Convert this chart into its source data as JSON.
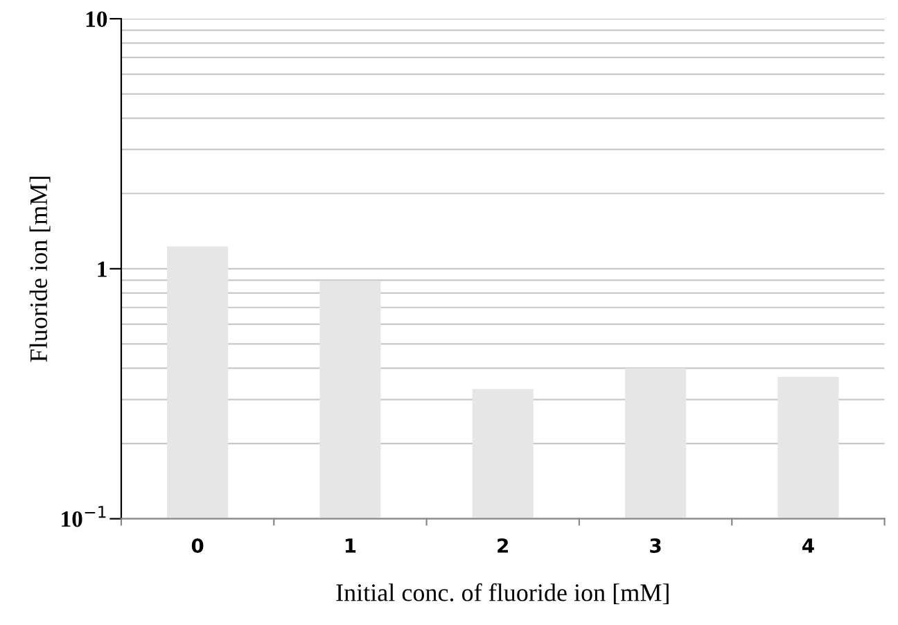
{
  "chart_data": {
    "type": "bar",
    "xlabel": "Initial conc. of fluoride ion [mM]",
    "ylabel": "Fluoride ion [mM]",
    "categories": [
      "0",
      "1",
      "2",
      "3",
      "4"
    ],
    "values": [
      1.23,
      0.89,
      0.33,
      0.4,
      0.37
    ],
    "color": "#e6e6e6",
    "log": "y",
    "ylim": [
      0.1,
      10
    ],
    "yticks": [
      {
        "value": 0.1,
        "label": "10$^{−1}$"
      },
      {
        "value": 0.2,
        "label": null
      },
      {
        "value": 0.3,
        "label": null
      },
      {
        "value": 0.4,
        "label": null
      },
      {
        "value": 0.5,
        "label": null
      },
      {
        "value": 0.6,
        "label": null
      },
      {
        "value": 0.7,
        "label": null
      },
      {
        "value": 0.8,
        "label": null
      },
      {
        "value": 0.9,
        "label": null
      },
      1,
      {
        "value": 2,
        "label": null
      },
      {
        "value": 3,
        "label": null
      },
      {
        "value": 4,
        "label": null
      },
      {
        "value": 5,
        "label": null
      },
      {
        "value": 6,
        "label": null
      },
      {
        "value": 7,
        "label": null
      },
      {
        "value": 8,
        "label": null
      },
      {
        "value": 9,
        "label": null
      },
      10
    ],
    "grid": "y"
  }
}
